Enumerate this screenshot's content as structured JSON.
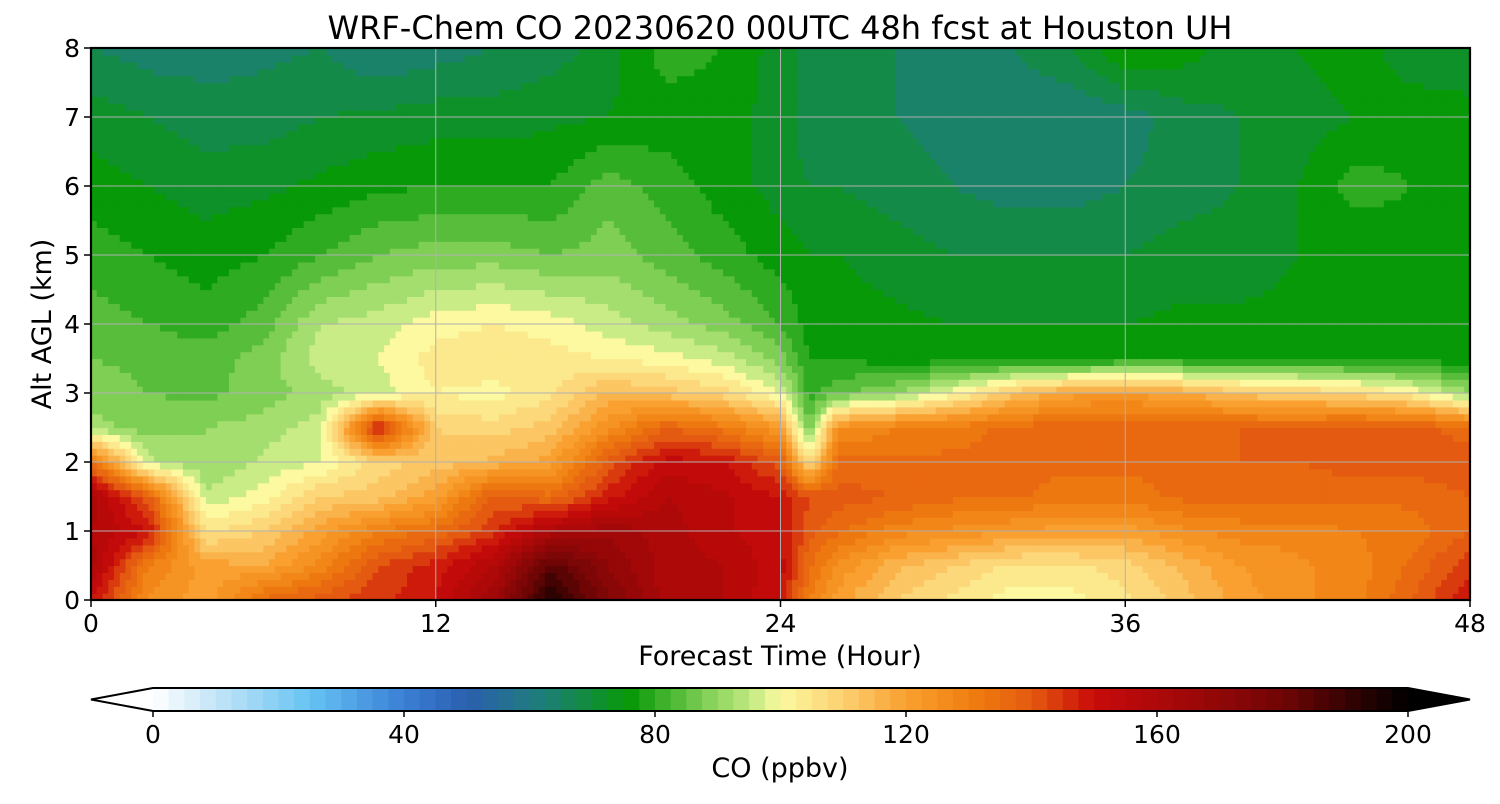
{
  "chart_data": {
    "type": "heatmap",
    "title": "WRF-Chem CO  20230620 00UTC 48h fcst at Houston UH",
    "xlabel": "Forecast Time (Hour)",
    "ylabel": "Alt AGL (km)",
    "xlim": [
      0,
      48
    ],
    "ylim": [
      0,
      8
    ],
    "xticks": [
      "0",
      "12",
      "24",
      "36",
      "48"
    ],
    "yticks": [
      "0",
      "1",
      "2",
      "3",
      "4",
      "5",
      "6",
      "7",
      "8"
    ],
    "grid": true,
    "x": [
      0,
      2,
      4,
      6,
      8,
      10,
      12,
      14,
      16,
      18,
      20,
      22,
      24,
      25,
      26,
      28,
      30,
      32,
      34,
      36,
      38,
      40,
      42,
      44,
      46,
      48
    ],
    "y": [
      0,
      0.5,
      1.0,
      1.5,
      2.0,
      2.5,
      3.0,
      3.5,
      4.0,
      5.0,
      6.0,
      7.0,
      8.0
    ],
    "z": [
      [
        150,
        125,
        120,
        135,
        140,
        145,
        150,
        165,
        195,
        175,
        160,
        158,
        150,
        130,
        120,
        110,
        105,
        100,
        100,
        105,
        112,
        120,
        125,
        128,
        138,
        150
      ],
      [
        160,
        130,
        120,
        118,
        128,
        142,
        148,
        158,
        185,
        170,
        160,
        158,
        152,
        135,
        125,
        115,
        110,
        105,
        105,
        108,
        115,
        122,
        125,
        128,
        135,
        145
      ],
      [
        158,
        150,
        105,
        110,
        120,
        130,
        135,
        145,
        160,
        165,
        160,
        155,
        150,
        140,
        135,
        128,
        125,
        122,
        120,
        120,
        125,
        128,
        128,
        130,
        132,
        138
      ],
      [
        160,
        140,
        95,
        100,
        110,
        112,
        120,
        140,
        135,
        148,
        158,
        155,
        150,
        142,
        140,
        138,
        135,
        135,
        132,
        132,
        135,
        135,
        135,
        135,
        135,
        138
      ],
      [
        135,
        95,
        90,
        95,
        98,
        108,
        112,
        115,
        120,
        140,
        152,
        150,
        140,
        105,
        135,
        135,
        135,
        135,
        135,
        135,
        135,
        138,
        138,
        140,
        140,
        142
      ],
      [
        92,
        88,
        90,
        92,
        96,
        150,
        110,
        108,
        112,
        125,
        138,
        132,
        122,
        85,
        125,
        130,
        132,
        135,
        138,
        138,
        138,
        138,
        138,
        140,
        140,
        135
      ],
      [
        88,
        86,
        85,
        88,
        92,
        96,
        102,
        100,
        105,
        115,
        112,
        108,
        98,
        80,
        85,
        90,
        100,
        112,
        120,
        122,
        118,
        112,
        110,
        108,
        102,
        90
      ],
      [
        86,
        85,
        84,
        88,
        96,
        98,
        104,
        106,
        104,
        102,
        100,
        96,
        88,
        78,
        78,
        76,
        76,
        76,
        76,
        78,
        78,
        78,
        78,
        76,
        76,
        76
      ],
      [
        84,
        82,
        80,
        84,
        94,
        96,
        100,
        102,
        100,
        96,
        92,
        88,
        82,
        76,
        76,
        75,
        74,
        74,
        74,
        74,
        75,
        75,
        75,
        75,
        75,
        76
      ],
      [
        80,
        78,
        76,
        78,
        82,
        86,
        88,
        88,
        86,
        88,
        84,
        80,
        76,
        74,
        74,
        72,
        70,
        70,
        70,
        70,
        72,
        72,
        74,
        74,
        76,
        76
      ],
      [
        76,
        74,
        72,
        73,
        75,
        77,
        78,
        78,
        78,
        84,
        80,
        76,
        72,
        70,
        70,
        68,
        66,
        64,
        64,
        66,
        68,
        70,
        74,
        80,
        78,
        76
      ],
      [
        72,
        70,
        68,
        68,
        70,
        71,
        72,
        72,
        73,
        74,
        76,
        76,
        72,
        68,
        67,
        66,
        64,
        62,
        62,
        64,
        68,
        70,
        72,
        74,
        76,
        76
      ],
      [
        66,
        64,
        64,
        65,
        66,
        62,
        64,
        66,
        68,
        72,
        80,
        78,
        72,
        68,
        67,
        66,
        66,
        66,
        70,
        78,
        76,
        72,
        74,
        76,
        72,
        70
      ]
    ],
    "colorbar": {
      "label": "CO  (ppbv)",
      "min": 0,
      "max": 200,
      "ticks": [
        "0",
        "40",
        "80",
        "120",
        "160",
        "200"
      ],
      "extend": "both",
      "colormap_stops": [
        {
          "v": 0,
          "c": "#ffffff"
        },
        {
          "v": 12,
          "c": "#b8e0f6"
        },
        {
          "v": 25,
          "c": "#66c3f3"
        },
        {
          "v": 40,
          "c": "#3a7fd6"
        },
        {
          "v": 50,
          "c": "#2b5fae"
        },
        {
          "v": 62,
          "c": "#1e7e7a"
        },
        {
          "v": 76,
          "c": "#079907"
        },
        {
          "v": 88,
          "c": "#7fcf55"
        },
        {
          "v": 96,
          "c": "#c9ec86"
        },
        {
          "v": 100,
          "c": "#fcf9a0"
        },
        {
          "v": 110,
          "c": "#fcd070"
        },
        {
          "v": 120,
          "c": "#f9a030"
        },
        {
          "v": 130,
          "c": "#f08010"
        },
        {
          "v": 140,
          "c": "#e45a10"
        },
        {
          "v": 150,
          "c": "#c80a0a"
        },
        {
          "v": 165,
          "c": "#a00808"
        },
        {
          "v": 180,
          "c": "#700505"
        },
        {
          "v": 200,
          "c": "#000000"
        }
      ]
    }
  }
}
